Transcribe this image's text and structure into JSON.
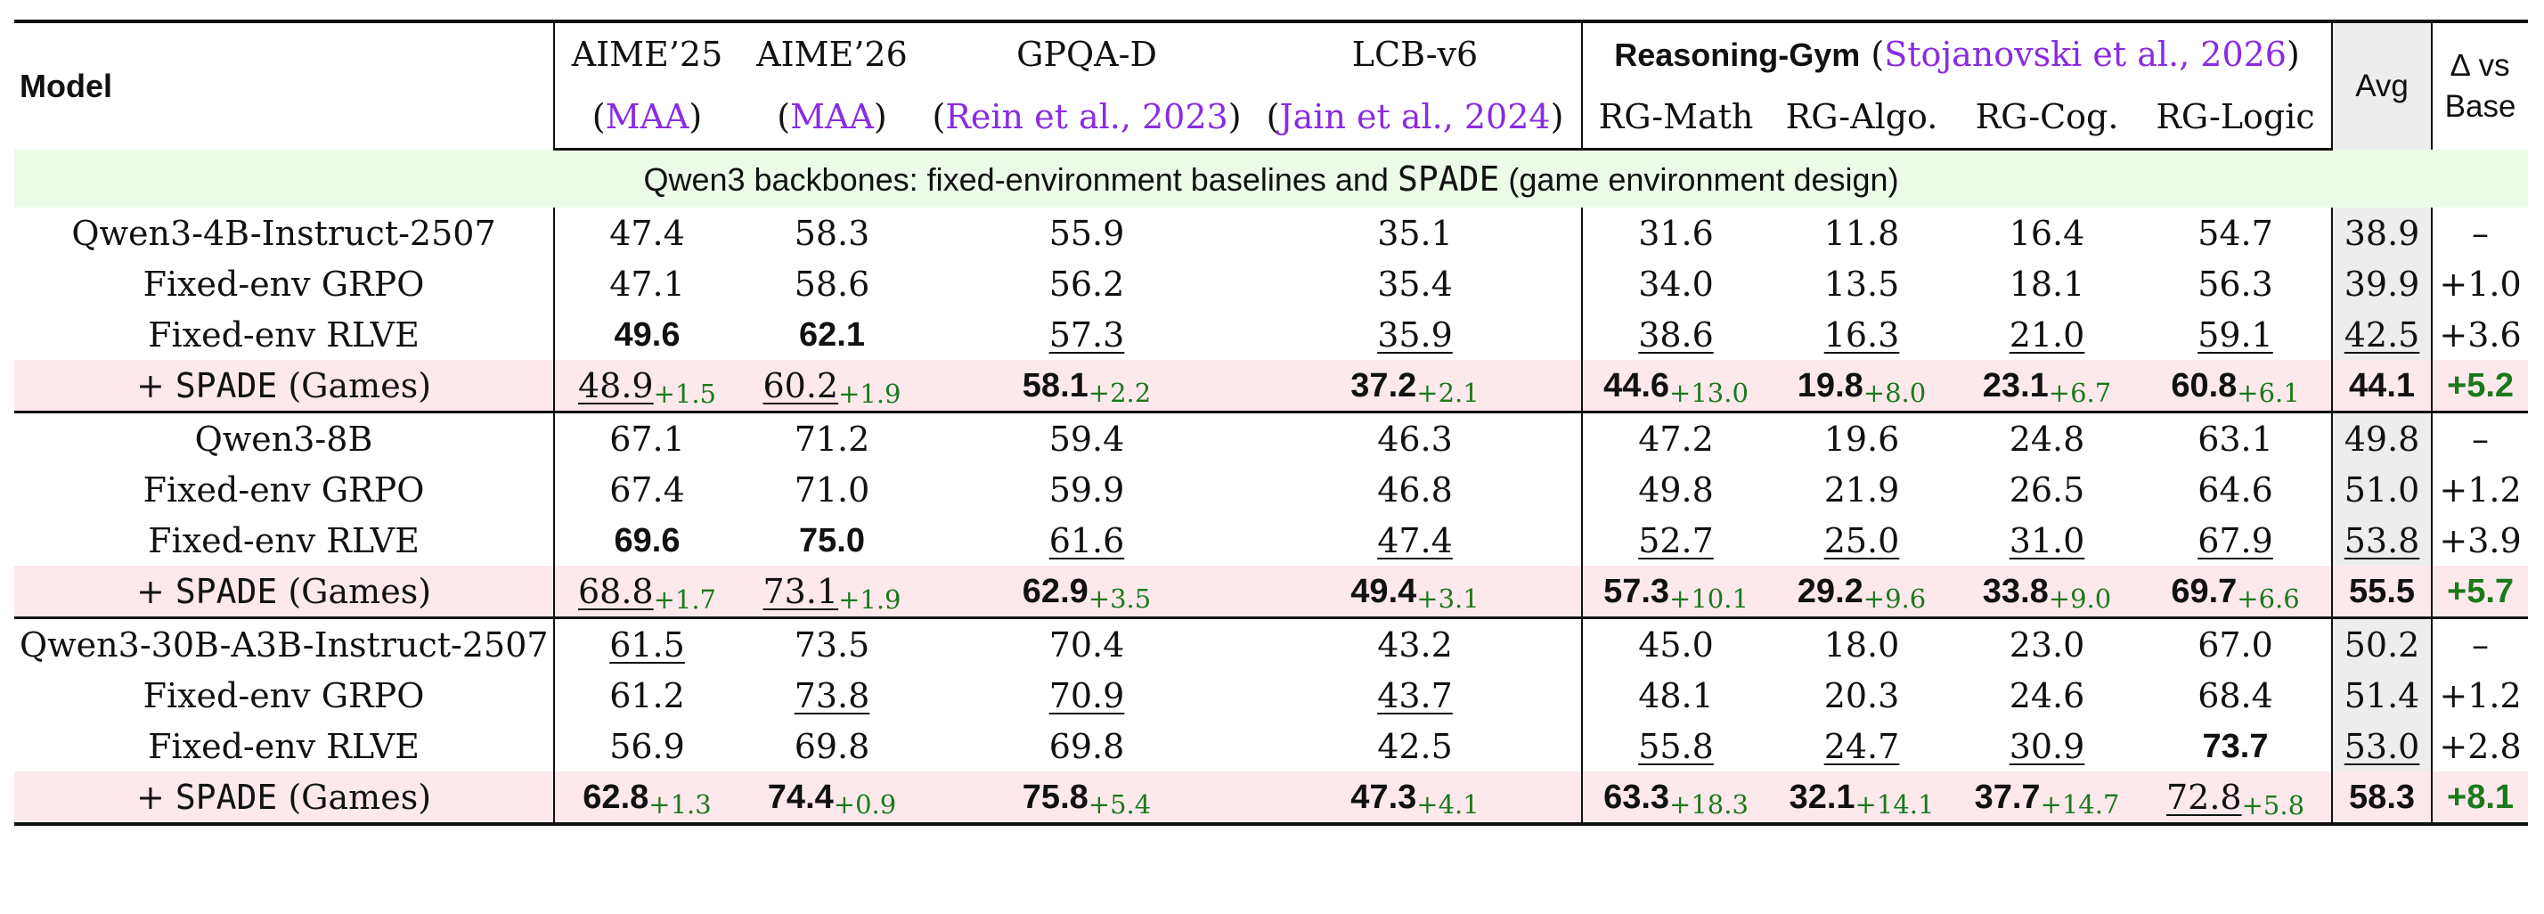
{
  "header": {
    "model": "Model",
    "columns": [
      {
        "title": "AIME’25",
        "cite": "MAA"
      },
      {
        "title": "AIME’26",
        "cite": "MAA"
      },
      {
        "title": "GPQA-D",
        "cite": "Rein et al., 2023"
      },
      {
        "title": "LCB-v6",
        "cite": "Jain et al., 2024"
      }
    ],
    "gym": {
      "name": "Reasoning-Gym",
      "cite": "Stojanovski et al., 2026"
    },
    "rg_columns": [
      "RG-Math",
      "RG-Algo.",
      "RG-Cog.",
      "RG-Logic"
    ],
    "avg": "Avg",
    "delta_line1": "∆ vs",
    "delta_line2": "Base"
  },
  "section": {
    "text_before": "Qwen3 backbones: fixed-environment baselines and ",
    "name": "SPADE",
    "text_after": " (game environment design)"
  },
  "groups": [
    {
      "rows": [
        {
          "name": "Qwen3-4B-Instruct-2507",
          "indent": false,
          "spade": false,
          "cells": [
            {
              "v": "47.4"
            },
            {
              "v": "58.3"
            },
            {
              "v": "55.9"
            },
            {
              "v": "35.1"
            },
            {
              "v": "31.6"
            },
            {
              "v": "11.8"
            },
            {
              "v": "16.4"
            },
            {
              "v": "54.7"
            }
          ],
          "avg": {
            "v": "38.9"
          },
          "delta": "–"
        },
        {
          "name": "Fixed-env GRPO",
          "indent": true,
          "spade": false,
          "cells": [
            {
              "v": "47.1"
            },
            {
              "v": "58.6"
            },
            {
              "v": "56.2"
            },
            {
              "v": "35.4"
            },
            {
              "v": "34.0"
            },
            {
              "v": "13.5"
            },
            {
              "v": "18.1"
            },
            {
              "v": "56.3"
            }
          ],
          "avg": {
            "v": "39.9"
          },
          "delta": "+1.0"
        },
        {
          "name": "Fixed-env RLVE",
          "indent": true,
          "spade": false,
          "cells": [
            {
              "v": "49.6",
              "b": true
            },
            {
              "v": "62.1",
              "b": true
            },
            {
              "v": "57.3",
              "u": true
            },
            {
              "v": "35.9",
              "u": true
            },
            {
              "v": "38.6",
              "u": true
            },
            {
              "v": "16.3",
              "u": true
            },
            {
              "v": "21.0",
              "u": true
            },
            {
              "v": "59.1",
              "u": true
            }
          ],
          "avg": {
            "v": "42.5",
            "u": true
          },
          "delta": "+3.6"
        },
        {
          "prefix": "+ ",
          "name": "SPADE",
          "suffix": " (Games)",
          "indent": true,
          "spade": true,
          "cells": [
            {
              "v": "48.9",
              "u": true,
              "g": "+1.5"
            },
            {
              "v": "60.2",
              "u": true,
              "g": "+1.9"
            },
            {
              "v": "58.1",
              "b": true,
              "g": "+2.2"
            },
            {
              "v": "37.2",
              "b": true,
              "g": "+2.1"
            },
            {
              "v": "44.6",
              "b": true,
              "g": "+13.0"
            },
            {
              "v": "19.8",
              "b": true,
              "g": "+8.0"
            },
            {
              "v": "23.1",
              "b": true,
              "g": "+6.7"
            },
            {
              "v": "60.8",
              "b": true,
              "g": "+6.1"
            }
          ],
          "avg": {
            "v": "44.1",
            "b": true
          },
          "delta": "+5.2"
        }
      ]
    },
    {
      "rows": [
        {
          "name": "Qwen3-8B",
          "indent": false,
          "spade": false,
          "cells": [
            {
              "v": "67.1"
            },
            {
              "v": "71.2"
            },
            {
              "v": "59.4"
            },
            {
              "v": "46.3"
            },
            {
              "v": "47.2"
            },
            {
              "v": "19.6"
            },
            {
              "v": "24.8"
            },
            {
              "v": "63.1"
            }
          ],
          "avg": {
            "v": "49.8"
          },
          "delta": "–"
        },
        {
          "name": "Fixed-env GRPO",
          "indent": true,
          "spade": false,
          "cells": [
            {
              "v": "67.4"
            },
            {
              "v": "71.0"
            },
            {
              "v": "59.9"
            },
            {
              "v": "46.8"
            },
            {
              "v": "49.8"
            },
            {
              "v": "21.9"
            },
            {
              "v": "26.5"
            },
            {
              "v": "64.6"
            }
          ],
          "avg": {
            "v": "51.0"
          },
          "delta": "+1.2"
        },
        {
          "name": "Fixed-env RLVE",
          "indent": true,
          "spade": false,
          "cells": [
            {
              "v": "69.6",
              "b": true
            },
            {
              "v": "75.0",
              "b": true
            },
            {
              "v": "61.6",
              "u": true
            },
            {
              "v": "47.4",
              "u": true
            },
            {
              "v": "52.7",
              "u": true
            },
            {
              "v": "25.0",
              "u": true
            },
            {
              "v": "31.0",
              "u": true
            },
            {
              "v": "67.9",
              "u": true
            }
          ],
          "avg": {
            "v": "53.8",
            "u": true
          },
          "delta": "+3.9"
        },
        {
          "prefix": "+ ",
          "name": "SPADE",
          "suffix": " (Games)",
          "indent": true,
          "spade": true,
          "cells": [
            {
              "v": "68.8",
              "u": true,
              "g": "+1.7"
            },
            {
              "v": "73.1",
              "u": true,
              "g": "+1.9"
            },
            {
              "v": "62.9",
              "b": true,
              "g": "+3.5"
            },
            {
              "v": "49.4",
              "b": true,
              "g": "+3.1"
            },
            {
              "v": "57.3",
              "b": true,
              "g": "+10.1"
            },
            {
              "v": "29.2",
              "b": true,
              "g": "+9.6"
            },
            {
              "v": "33.8",
              "b": true,
              "g": "+9.0"
            },
            {
              "v": "69.7",
              "b": true,
              "g": "+6.6"
            }
          ],
          "avg": {
            "v": "55.5",
            "b": true
          },
          "delta": "+5.7"
        }
      ]
    },
    {
      "rows": [
        {
          "name": "Qwen3-30B-A3B-Instruct-2507",
          "indent": false,
          "spade": false,
          "cells": [
            {
              "v": "61.5",
              "u": true
            },
            {
              "v": "73.5"
            },
            {
              "v": "70.4"
            },
            {
              "v": "43.2"
            },
            {
              "v": "45.0"
            },
            {
              "v": "18.0"
            },
            {
              "v": "23.0"
            },
            {
              "v": "67.0"
            }
          ],
          "avg": {
            "v": "50.2"
          },
          "delta": "–"
        },
        {
          "name": "Fixed-env GRPO",
          "indent": true,
          "spade": false,
          "cells": [
            {
              "v": "61.2"
            },
            {
              "v": "73.8",
              "u": true
            },
            {
              "v": "70.9",
              "u": true
            },
            {
              "v": "43.7",
              "u": true
            },
            {
              "v": "48.1"
            },
            {
              "v": "20.3"
            },
            {
              "v": "24.6"
            },
            {
              "v": "68.4"
            }
          ],
          "avg": {
            "v": "51.4"
          },
          "delta": "+1.2"
        },
        {
          "name": "Fixed-env RLVE",
          "indent": true,
          "spade": false,
          "cells": [
            {
              "v": "56.9"
            },
            {
              "v": "69.8"
            },
            {
              "v": "69.8"
            },
            {
              "v": "42.5"
            },
            {
              "v": "55.8",
              "u": true
            },
            {
              "v": "24.7",
              "u": true
            },
            {
              "v": "30.9",
              "u": true
            },
            {
              "v": "73.7",
              "b": true
            }
          ],
          "avg": {
            "v": "53.0",
            "u": true
          },
          "delta": "+2.8"
        },
        {
          "prefix": "+ ",
          "name": "SPADE",
          "suffix": " (Games)",
          "indent": true,
          "spade": true,
          "cells": [
            {
              "v": "62.8",
              "b": true,
              "g": "+1.3"
            },
            {
              "v": "74.4",
              "b": true,
              "g": "+0.9"
            },
            {
              "v": "75.8",
              "b": true,
              "g": "+5.4"
            },
            {
              "v": "47.3",
              "b": true,
              "g": "+4.1"
            },
            {
              "v": "63.3",
              "b": true,
              "g": "+18.3"
            },
            {
              "v": "32.1",
              "b": true,
              "g": "+14.1"
            },
            {
              "v": "37.7",
              "b": true,
              "g": "+14.7"
            },
            {
              "v": "72.8",
              "u": true,
              "g": "+5.8"
            }
          ],
          "avg": {
            "v": "58.3",
            "b": true
          },
          "delta": "+8.1"
        }
      ]
    }
  ]
}
